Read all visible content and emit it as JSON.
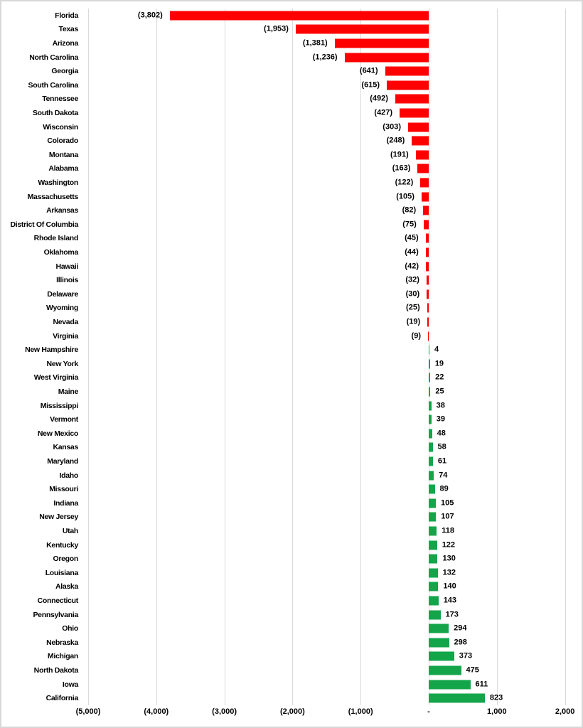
{
  "chart_data": {
    "type": "bar",
    "orientation": "horizontal",
    "title": "",
    "xlabel": "",
    "ylabel": "",
    "xlim": [
      -5000,
      2000
    ],
    "grid": "vertical",
    "legend": "none",
    "colors": {
      "negative_bar": "#fe0000",
      "positive_bar": "#14a54b",
      "gridline": "#d9d9d9",
      "frame_border": "#d8d8d8",
      "text": "#000000",
      "background": "#ffffff"
    },
    "categories": [
      "Florida",
      "Texas",
      "Arizona",
      "North Carolina",
      "Georgia",
      "South Carolina",
      "Tennessee",
      "South Dakota",
      "Wisconsin",
      "Colorado",
      "Montana",
      "Alabama",
      "Washington",
      "Massachusetts",
      "Arkansas",
      "District Of Columbia",
      "Rhode Island",
      "Oklahoma",
      "Hawaii",
      "Illinois",
      "Delaware",
      "Wyoming",
      "Nevada",
      "Virginia",
      "New Hampshire",
      "New York",
      "West Virginia",
      "Maine",
      "Mississippi",
      "Vermont",
      "New Mexico",
      "Kansas",
      "Maryland",
      "Idaho",
      "Missouri",
      "Indiana",
      "New Jersey",
      "Utah",
      "Kentucky",
      "Oregon",
      "Louisiana",
      "Alaska",
      "Connecticut",
      "Pennsylvania",
      "Ohio",
      "Nebraska",
      "Michigan",
      "North Dakota",
      "Iowa",
      "California"
    ],
    "values": [
      -3802,
      -1953,
      -1381,
      -1236,
      -641,
      -615,
      -492,
      -427,
      -303,
      -248,
      -191,
      -163,
      -122,
      -105,
      -82,
      -75,
      -45,
      -44,
      -42,
      -32,
      -30,
      -25,
      -19,
      -9,
      4,
      19,
      22,
      25,
      38,
      39,
      48,
      58,
      61,
      74,
      89,
      105,
      107,
      118,
      122,
      130,
      132,
      140,
      143,
      173,
      294,
      298,
      373,
      475,
      611,
      823
    ],
    "labels": [
      "(3,802)",
      "(1,953)",
      "(1,381)",
      "(1,236)",
      "(641)",
      "(615)",
      "(492)",
      "(427)",
      "(303)",
      "(248)",
      "(191)",
      "(163)",
      "(122)",
      "(105)",
      "(82)",
      "(75)",
      "(45)",
      "(44)",
      "(42)",
      "(32)",
      "(30)",
      "(25)",
      "(19)",
      "(9)",
      "4",
      "19",
      "22",
      "25",
      "38",
      "39",
      "48",
      "58",
      "61",
      "74",
      "89",
      "105",
      "107",
      "118",
      "122",
      "130",
      "132",
      "140",
      "143",
      "173",
      "294",
      "298",
      "373",
      "475",
      "611",
      "823"
    ],
    "x_ticks": [
      {
        "value": -5000,
        "label": "(5,000)"
      },
      {
        "value": -4000,
        "label": "(4,000)"
      },
      {
        "value": -3000,
        "label": "(3,000)"
      },
      {
        "value": -2000,
        "label": "(2,000)"
      },
      {
        "value": -1000,
        "label": "(1,000)"
      },
      {
        "value": 0,
        "label": "-"
      },
      {
        "value": 1000,
        "label": "1,000"
      },
      {
        "value": 2000,
        "label": "2,000"
      }
    ]
  }
}
